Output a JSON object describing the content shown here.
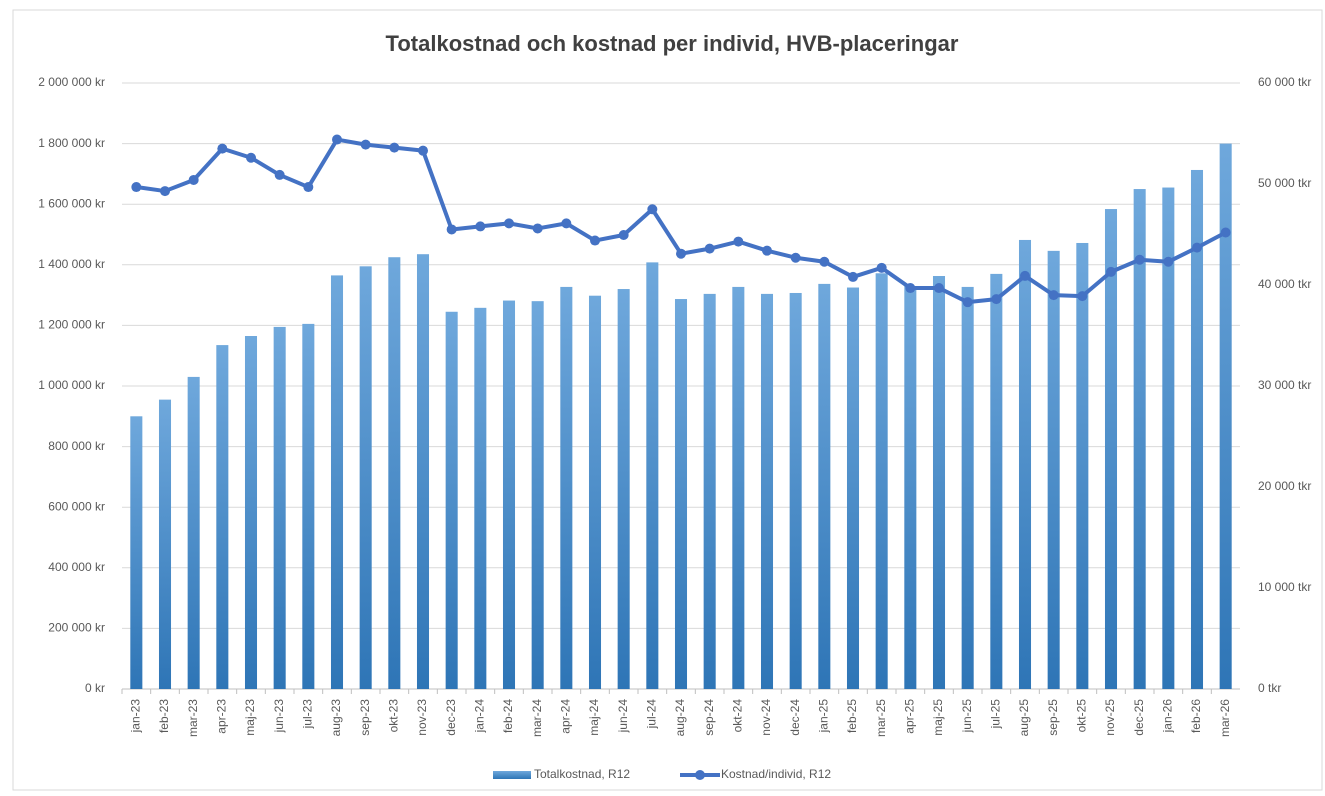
{
  "chart_data": {
    "type": "bar_line",
    "title": "Totalkostnad och kostnad per individ, HVB-placeringar",
    "categories": [
      "jan-23",
      "feb-23",
      "mar-23",
      "apr-23",
      "maj-23",
      "jun-23",
      "jul-23",
      "aug-23",
      "sep-23",
      "okt-23",
      "nov-23",
      "dec-23",
      "jan-24",
      "feb-24",
      "mar-24",
      "apr-24",
      "maj-24",
      "jun-24",
      "jul-24",
      "aug-24",
      "sep-24",
      "okt-24",
      "nov-24",
      "dec-24",
      "jan-25",
      "feb-25",
      "mar-25",
      "apr-25",
      "maj-25",
      "jun-25",
      "jul-25",
      "aug-25",
      "sep-25",
      "okt-25",
      "nov-25",
      "dec-25",
      "jan-26",
      "feb-26",
      "mar-26"
    ],
    "series": [
      {
        "name": "Totalkostnad, R12",
        "type": "bar",
        "color": "#5b9bd5",
        "values": [
          900000,
          955000,
          1030000,
          1135000,
          1165000,
          1195000,
          1205000,
          1365000,
          1395000,
          1425000,
          1435000,
          1245000,
          1258000,
          1282000,
          1280000,
          1327000,
          1298000,
          1320000,
          1408000,
          1287000,
          1304000,
          1327000,
          1304000,
          1307000,
          1337000,
          1325000,
          1372000,
          1330000,
          1363000,
          1327000,
          1370000,
          1482000,
          1446000,
          1472000,
          1584000,
          1650000,
          1655000,
          1713000,
          1800000
        ]
      },
      {
        "name": "Kostnad/individ, R12",
        "type": "line",
        "axis": "y2",
        "color": "#4472c4",
        "values": [
          49700,
          49300,
          50400,
          53500,
          52600,
          50900,
          49700,
          54400,
          53900,
          53600,
          53300,
          45500,
          45800,
          46100,
          45600,
          46100,
          44400,
          44950,
          47500,
          43100,
          43600,
          44300,
          43400,
          42700,
          42300,
          40800,
          41700,
          39700,
          39700,
          38300,
          38600,
          40900,
          39000,
          38900,
          41300,
          42500,
          42300,
          43700,
          45200
        ]
      }
    ],
    "ylim": [
      0,
      2000000
    ],
    "yticks": [
      {
        "value": 0,
        "label": "0 kr"
      },
      {
        "value": 200000,
        "label": "200 000 kr"
      },
      {
        "value": 400000,
        "label": "400 000 kr"
      },
      {
        "value": 600000,
        "label": "600 000 kr"
      },
      {
        "value": 800000,
        "label": "800 000 kr"
      },
      {
        "value": 1000000,
        "label": "1 000 000 kr"
      },
      {
        "value": 1200000,
        "label": "1 200 000 kr"
      },
      {
        "value": 1400000,
        "label": "1 400 000 kr"
      },
      {
        "value": 1600000,
        "label": "1 600 000 kr"
      },
      {
        "value": 1800000,
        "label": "1 800 000 kr"
      },
      {
        "value": 2000000,
        "label": "2 000 000 kr"
      }
    ],
    "y2lim": [
      0,
      60000
    ],
    "y2ticks": [
      {
        "value": 0,
        "label": "0 tkr"
      },
      {
        "value": 10000,
        "label": "10 000 tkr"
      },
      {
        "value": 20000,
        "label": "20 000 tkr"
      },
      {
        "value": 30000,
        "label": "30 000 tkr"
      },
      {
        "value": 40000,
        "label": "40 000 tkr"
      },
      {
        "value": 50000,
        "label": "50 000 tkr"
      },
      {
        "value": 60000,
        "label": "60 000 tkr"
      }
    ],
    "grid": true,
    "legend": "bottom"
  }
}
